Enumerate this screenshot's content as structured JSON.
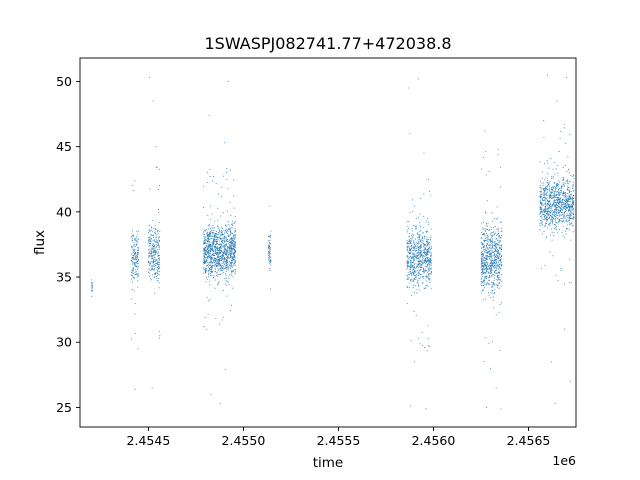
{
  "chart_data": {
    "type": "scatter",
    "title": "1SWASPJ082741.77+472038.8",
    "xlabel": "time",
    "ylabel": "flux",
    "x_offset_label": "1e6",
    "xlim": [
      2454140,
      2456750
    ],
    "ylim": [
      23.5,
      51.8
    ],
    "x_ticks": [
      {
        "value": 2454500,
        "label": "2.4545"
      },
      {
        "value": 2455000,
        "label": "2.4550"
      },
      {
        "value": 2455500,
        "label": "2.4555"
      },
      {
        "value": 2456000,
        "label": "2.4560"
      },
      {
        "value": 2456500,
        "label": "2.4565"
      }
    ],
    "y_ticks": [
      {
        "value": 25,
        "label": "25"
      },
      {
        "value": 30,
        "label": "30"
      },
      {
        "value": 35,
        "label": "35"
      },
      {
        "value": 40,
        "label": "40"
      },
      {
        "value": 45,
        "label": "45"
      },
      {
        "value": 50,
        "label": "50"
      }
    ],
    "grid": false,
    "marker_color": "#1f77b4",
    "clusters": [
      {
        "x_start": 2454200,
        "x_end": 2454205,
        "y_center": 34.3,
        "y_spread": 0.8,
        "count": 15
      },
      {
        "x_start": 2454410,
        "x_end": 2454450,
        "y_center": 36.5,
        "y_spread": 3.2,
        "count": 160
      },
      {
        "x_start": 2454500,
        "x_end": 2454560,
        "y_center": 36.8,
        "y_spread": 3.4,
        "count": 260
      },
      {
        "x_start": 2454790,
        "x_end": 2454960,
        "y_center": 37.0,
        "y_spread": 3.3,
        "count": 1100
      },
      {
        "x_start": 2455130,
        "x_end": 2455145,
        "y_center": 37.0,
        "y_spread": 2.2,
        "count": 60
      },
      {
        "x_start": 2455860,
        "x_end": 2455990,
        "y_center": 36.5,
        "y_spread": 3.6,
        "count": 650
      },
      {
        "x_start": 2456250,
        "x_end": 2456360,
        "y_center": 36.5,
        "y_spread": 4.2,
        "count": 650
      },
      {
        "x_start": 2456560,
        "x_end": 2456740,
        "y_center": 40.6,
        "y_spread": 3.2,
        "count": 900
      }
    ],
    "outliers": [
      [
        2454430,
        26.4
      ],
      [
        2454445,
        29.5
      ],
      [
        2454505,
        50.3
      ],
      [
        2454525,
        48.5
      ],
      [
        2454540,
        45.0
      ],
      [
        2454520,
        26.5
      ],
      [
        2454560,
        30.5
      ],
      [
        2454820,
        47.4
      ],
      [
        2454830,
        26.0
      ],
      [
        2454880,
        25.3
      ],
      [
        2454900,
        45.3
      ],
      [
        2454920,
        50.0
      ],
      [
        2454905,
        27.9
      ],
      [
        2455870,
        49.5
      ],
      [
        2455875,
        46.0
      ],
      [
        2455880,
        25.1
      ],
      [
        2455900,
        28.5
      ],
      [
        2455950,
        44.5
      ],
      [
        2455960,
        24.9
      ],
      [
        2455920,
        50.2
      ],
      [
        2456270,
        46.2
      ],
      [
        2456280,
        25.0
      ],
      [
        2456300,
        28.0
      ],
      [
        2456340,
        44.8
      ],
      [
        2456355,
        24.9
      ],
      [
        2456330,
        26.5
      ],
      [
        2456580,
        47.0
      ],
      [
        2456600,
        50.5
      ],
      [
        2456620,
        28.5
      ],
      [
        2456650,
        48.5
      ],
      [
        2456700,
        50.3
      ],
      [
        2456640,
        25.3
      ],
      [
        2456720,
        27.0
      ],
      [
        2456690,
        31.0
      ]
    ]
  }
}
